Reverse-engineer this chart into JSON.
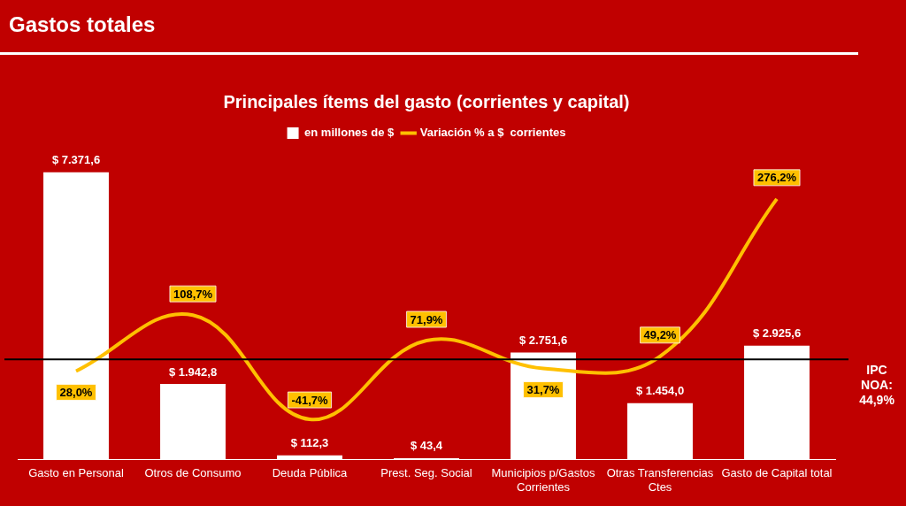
{
  "chart_data": {
    "type": "bar",
    "title": "Gastos totales",
    "subtitle": "Principales ítems del gasto (corrientes y capital)",
    "categories": [
      "Gasto en Personal",
      "Otros de Consumo",
      "Deuda Pública",
      "Prest. Seg. Social",
      "Municipios p/Gastos Corrientes",
      "Otras Transferencias Ctes",
      "Gasto de Capital total"
    ],
    "series": [
      {
        "name": "en millones de $",
        "color": "#ffffff",
        "values": [
          7371.6,
          1942.8,
          112.3,
          43.4,
          2751.6,
          1454.0,
          2925.6
        ],
        "value_labels": [
          "$ 7.371,6",
          "$ 1.942,8",
          "$ 112,3",
          "$ 43,4",
          "$ 2.751,6",
          "$ 1.454,0",
          "$ 2.925,6"
        ]
      },
      {
        "name": "Variación % a $  corrientes",
        "type": "line",
        "axis": "y2",
        "color": "#ffc000",
        "values": [
          28.0,
          108.7,
          -41.7,
          71.9,
          31.7,
          49.2,
          276.2
        ],
        "value_labels": [
          "28,0%",
          "108,7%",
          "-41,7%",
          "71,9%",
          "31,7%",
          "49,2%",
          "276,2%"
        ]
      }
    ],
    "tick_labels": "x",
    "grid": false,
    "legend": "top",
    "marker": "none",
    "line_style": "solid",
    "ref_lines": [
      {
        "axis": "y2",
        "value": 44.9,
        "label": "IPC NOA: 44,9%",
        "color": "#000000"
      }
    ]
  }
}
